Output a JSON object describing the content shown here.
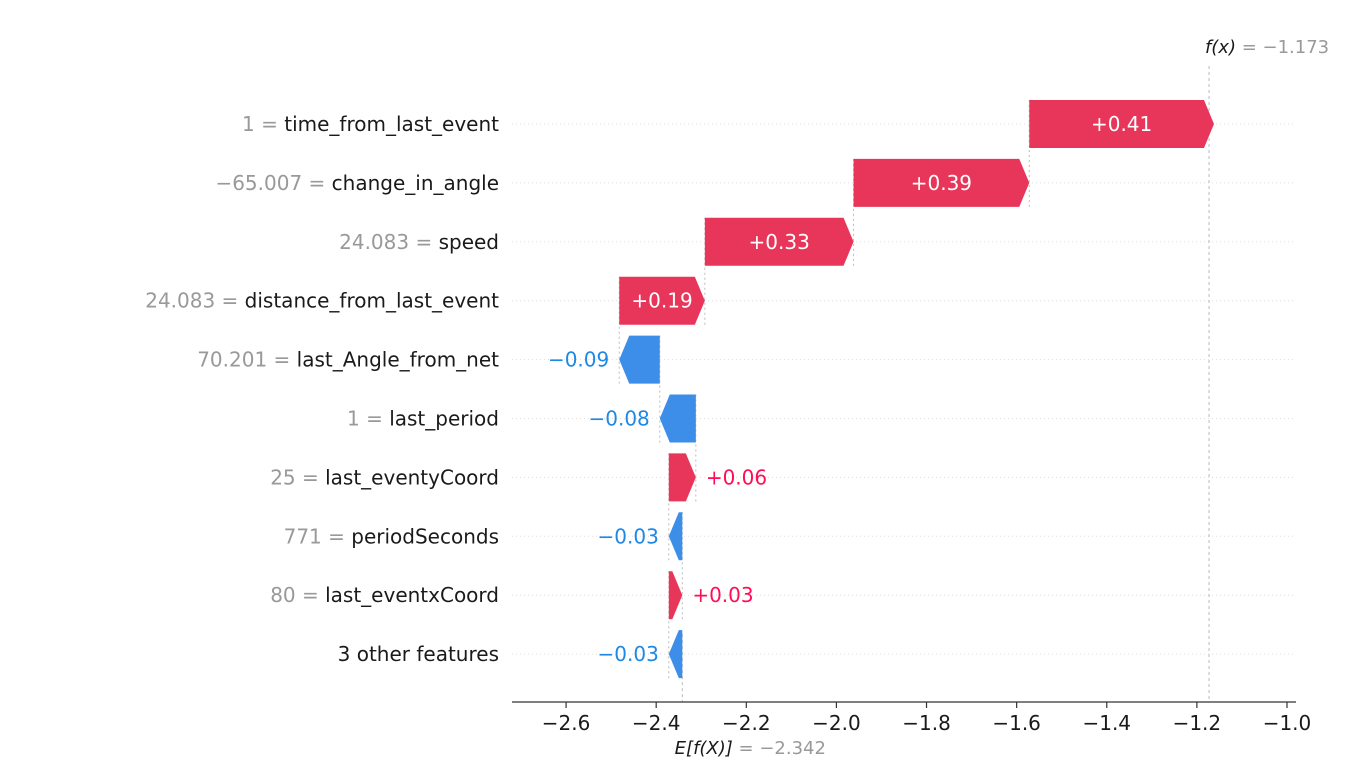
{
  "chart_data": {
    "type": "waterfall",
    "base_value": -2.342,
    "base_label": "E[f(X)] = −2.342",
    "base_label_parts": {
      "lhs": "E[f(X)]",
      "eq": " = ",
      "rhs": "−2.342"
    },
    "output_value": -1.173,
    "output_label": "f(x) = −1.173",
    "output_label_parts": {
      "lhs": "f(x)",
      "eq": " = ",
      "rhs": "−1.173"
    },
    "xlim": [
      -2.72,
      -0.98
    ],
    "xticks": [
      {
        "value": -2.6,
        "label": "−2.6"
      },
      {
        "value": -2.4,
        "label": "−2.4"
      },
      {
        "value": -2.2,
        "label": "−2.2"
      },
      {
        "value": -2.0,
        "label": "−2.0"
      },
      {
        "value": -1.8,
        "label": "−1.8"
      },
      {
        "value": -1.6,
        "label": "−1.6"
      },
      {
        "value": -1.4,
        "label": "−1.4"
      },
      {
        "value": -1.2,
        "label": "−1.2"
      },
      {
        "value": -1.0,
        "label": "−1.0"
      }
    ],
    "features": [
      {
        "value": "1",
        "name": "time_from_last_event",
        "contribution": 0.41,
        "label": "+0.41"
      },
      {
        "value": "−65.007",
        "name": "change_in_angle",
        "contribution": 0.39,
        "label": "+0.39"
      },
      {
        "value": "24.083",
        "name": "speed",
        "contribution": 0.33,
        "label": "+0.33"
      },
      {
        "value": "24.083",
        "name": "distance_from_last_event",
        "contribution": 0.19,
        "label": "+0.19"
      },
      {
        "value": "70.201",
        "name": "last_Angle_from_net",
        "contribution": -0.09,
        "label": "−0.09"
      },
      {
        "value": "1",
        "name": "last_period",
        "contribution": -0.08,
        "label": "−0.08"
      },
      {
        "value": "25",
        "name": "last_eventyCoord",
        "contribution": 0.06,
        "label": "+0.06"
      },
      {
        "value": "771",
        "name": "periodSeconds",
        "contribution": -0.03,
        "label": "−0.03"
      },
      {
        "value": "80",
        "name": "last_eventxCoord",
        "contribution": 0.03,
        "label": "+0.03"
      },
      {
        "value": "",
        "name": "3 other features",
        "contribution": -0.03,
        "label": "−0.03"
      }
    ],
    "colors": {
      "positive": "#ff0d57",
      "negative": "#1e88e5",
      "positive_bar": "#e8365a",
      "negative_bar": "#3c8ee8"
    }
  }
}
